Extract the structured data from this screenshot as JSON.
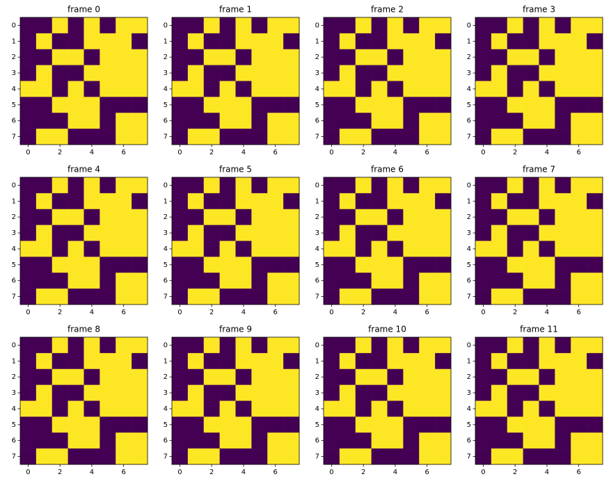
{
  "chart_data": [
    {
      "type": "heatmap",
      "title": "frame 0",
      "colors": [
        "#440154",
        "#fde725"
      ],
      "xlim": [
        -0.5,
        7.5
      ],
      "ylim": [
        7.5,
        -0.5
      ],
      "xticks": [
        0,
        2,
        4,
        6
      ],
      "yticks": [
        0,
        1,
        2,
        3,
        4,
        5,
        6,
        7
      ],
      "z": [
        [
          0,
          0,
          1,
          0,
          1,
          0,
          1,
          1
        ],
        [
          0,
          1,
          0,
          0,
          1,
          1,
          1,
          0
        ],
        [
          0,
          0,
          1,
          1,
          0,
          1,
          1,
          1
        ],
        [
          0,
          1,
          0,
          0,
          1,
          1,
          1,
          1
        ],
        [
          1,
          1,
          0,
          1,
          0,
          1,
          1,
          1
        ],
        [
          0,
          0,
          1,
          1,
          1,
          0,
          0,
          0
        ],
        [
          0,
          0,
          0,
          1,
          1,
          0,
          1,
          1
        ],
        [
          0,
          1,
          1,
          0,
          0,
          0,
          1,
          1
        ]
      ]
    },
    {
      "type": "heatmap",
      "title": "frame 1",
      "colors": [
        "#440154",
        "#fde725"
      ],
      "xlim": [
        -0.5,
        7.5
      ],
      "ylim": [
        7.5,
        -0.5
      ],
      "xticks": [
        0,
        2,
        4,
        6
      ],
      "yticks": [
        0,
        1,
        2,
        3,
        4,
        5,
        6,
        7
      ],
      "z": [
        [
          0,
          0,
          1,
          0,
          1,
          0,
          1,
          1
        ],
        [
          0,
          1,
          0,
          0,
          1,
          1,
          1,
          0
        ],
        [
          0,
          0,
          1,
          1,
          0,
          1,
          1,
          1
        ],
        [
          0,
          1,
          0,
          0,
          1,
          1,
          1,
          1
        ],
        [
          1,
          1,
          0,
          1,
          0,
          1,
          1,
          1
        ],
        [
          0,
          0,
          1,
          1,
          1,
          0,
          0,
          0
        ],
        [
          0,
          0,
          0,
          1,
          1,
          0,
          1,
          1
        ],
        [
          0,
          1,
          1,
          0,
          0,
          0,
          1,
          1
        ]
      ]
    },
    {
      "type": "heatmap",
      "title": "frame 2",
      "colors": [
        "#440154",
        "#fde725"
      ],
      "xlim": [
        -0.5,
        7.5
      ],
      "ylim": [
        7.5,
        -0.5
      ],
      "xticks": [
        0,
        2,
        4,
        6
      ],
      "yticks": [
        0,
        1,
        2,
        3,
        4,
        5,
        6,
        7
      ],
      "z": [
        [
          0,
          0,
          1,
          0,
          1,
          0,
          1,
          1
        ],
        [
          0,
          1,
          0,
          0,
          1,
          1,
          1,
          0
        ],
        [
          0,
          0,
          1,
          1,
          0,
          1,
          1,
          1
        ],
        [
          0,
          1,
          0,
          0,
          1,
          1,
          1,
          1
        ],
        [
          1,
          1,
          0,
          1,
          0,
          1,
          1,
          1
        ],
        [
          0,
          0,
          1,
          1,
          1,
          0,
          0,
          0
        ],
        [
          0,
          0,
          0,
          1,
          1,
          0,
          1,
          1
        ],
        [
          0,
          1,
          1,
          0,
          0,
          0,
          1,
          1
        ]
      ]
    },
    {
      "type": "heatmap",
      "title": "frame 3",
      "colors": [
        "#440154",
        "#fde725"
      ],
      "xlim": [
        -0.5,
        7.5
      ],
      "ylim": [
        7.5,
        -0.5
      ],
      "xticks": [
        0,
        2,
        4,
        6
      ],
      "yticks": [
        0,
        1,
        2,
        3,
        4,
        5,
        6,
        7
      ],
      "z": [
        [
          0,
          0,
          1,
          0,
          1,
          0,
          1,
          1
        ],
        [
          0,
          1,
          0,
          0,
          1,
          1,
          1,
          0
        ],
        [
          0,
          0,
          1,
          1,
          0,
          1,
          1,
          1
        ],
        [
          0,
          1,
          0,
          0,
          1,
          1,
          1,
          1
        ],
        [
          1,
          1,
          0,
          1,
          0,
          1,
          1,
          1
        ],
        [
          0,
          0,
          1,
          1,
          1,
          0,
          0,
          0
        ],
        [
          0,
          0,
          0,
          1,
          1,
          0,
          1,
          1
        ],
        [
          0,
          1,
          1,
          0,
          0,
          0,
          1,
          1
        ]
      ]
    },
    {
      "type": "heatmap",
      "title": "frame 4",
      "colors": [
        "#440154",
        "#fde725"
      ],
      "xlim": [
        -0.5,
        7.5
      ],
      "ylim": [
        7.5,
        -0.5
      ],
      "xticks": [
        0,
        2,
        4,
        6
      ],
      "yticks": [
        0,
        1,
        2,
        3,
        4,
        5,
        6,
        7
      ],
      "z": [
        [
          0,
          0,
          1,
          0,
          1,
          0,
          1,
          1
        ],
        [
          0,
          1,
          0,
          0,
          1,
          1,
          1,
          0
        ],
        [
          0,
          0,
          1,
          1,
          0,
          1,
          1,
          1
        ],
        [
          0,
          1,
          0,
          0,
          1,
          1,
          1,
          1
        ],
        [
          1,
          1,
          0,
          1,
          0,
          1,
          1,
          1
        ],
        [
          0,
          0,
          1,
          1,
          1,
          0,
          0,
          0
        ],
        [
          0,
          0,
          0,
          1,
          1,
          0,
          1,
          1
        ],
        [
          0,
          1,
          1,
          0,
          0,
          0,
          1,
          1
        ]
      ]
    },
    {
      "type": "heatmap",
      "title": "frame 5",
      "colors": [
        "#440154",
        "#fde725"
      ],
      "xlim": [
        -0.5,
        7.5
      ],
      "ylim": [
        7.5,
        -0.5
      ],
      "xticks": [
        0,
        2,
        4,
        6
      ],
      "yticks": [
        0,
        1,
        2,
        3,
        4,
        5,
        6,
        7
      ],
      "z": [
        [
          0,
          0,
          1,
          0,
          1,
          0,
          1,
          1
        ],
        [
          0,
          1,
          0,
          0,
          1,
          1,
          1,
          0
        ],
        [
          0,
          0,
          1,
          1,
          0,
          1,
          1,
          1
        ],
        [
          0,
          1,
          0,
          0,
          1,
          1,
          1,
          1
        ],
        [
          1,
          1,
          0,
          1,
          0,
          1,
          1,
          1
        ],
        [
          0,
          0,
          1,
          1,
          1,
          0,
          0,
          0
        ],
        [
          0,
          0,
          0,
          1,
          1,
          0,
          1,
          1
        ],
        [
          0,
          1,
          1,
          0,
          0,
          0,
          1,
          1
        ]
      ]
    },
    {
      "type": "heatmap",
      "title": "frame 6",
      "colors": [
        "#440154",
        "#fde725"
      ],
      "xlim": [
        -0.5,
        7.5
      ],
      "ylim": [
        7.5,
        -0.5
      ],
      "xticks": [
        0,
        2,
        4,
        6
      ],
      "yticks": [
        0,
        1,
        2,
        3,
        4,
        5,
        6,
        7
      ],
      "z": [
        [
          0,
          0,
          1,
          0,
          1,
          0,
          1,
          1
        ],
        [
          0,
          1,
          0,
          0,
          1,
          1,
          1,
          0
        ],
        [
          0,
          0,
          1,
          1,
          0,
          1,
          1,
          1
        ],
        [
          0,
          1,
          0,
          0,
          1,
          1,
          1,
          1
        ],
        [
          1,
          1,
          0,
          1,
          0,
          1,
          1,
          1
        ],
        [
          0,
          0,
          1,
          1,
          1,
          0,
          0,
          0
        ],
        [
          0,
          0,
          0,
          1,
          1,
          0,
          1,
          1
        ],
        [
          0,
          1,
          1,
          0,
          0,
          0,
          1,
          1
        ]
      ]
    },
    {
      "type": "heatmap",
      "title": "frame 7",
      "colors": [
        "#440154",
        "#fde725"
      ],
      "xlim": [
        -0.5,
        7.5
      ],
      "ylim": [
        7.5,
        -0.5
      ],
      "xticks": [
        0,
        2,
        4,
        6
      ],
      "yticks": [
        0,
        1,
        2,
        3,
        4,
        5,
        6,
        7
      ],
      "z": [
        [
          0,
          0,
          1,
          0,
          1,
          0,
          1,
          1
        ],
        [
          0,
          1,
          0,
          0,
          1,
          1,
          1,
          0
        ],
        [
          0,
          0,
          1,
          1,
          0,
          1,
          1,
          1
        ],
        [
          0,
          1,
          0,
          0,
          1,
          1,
          1,
          1
        ],
        [
          1,
          1,
          0,
          1,
          0,
          1,
          1,
          1
        ],
        [
          0,
          0,
          1,
          1,
          1,
          0,
          0,
          0
        ],
        [
          0,
          0,
          0,
          1,
          1,
          0,
          1,
          1
        ],
        [
          0,
          1,
          1,
          0,
          0,
          0,
          1,
          1
        ]
      ]
    },
    {
      "type": "heatmap",
      "title": "frame 8",
      "colors": [
        "#440154",
        "#fde725"
      ],
      "xlim": [
        -0.5,
        7.5
      ],
      "ylim": [
        7.5,
        -0.5
      ],
      "xticks": [
        0,
        2,
        4,
        6
      ],
      "yticks": [
        0,
        1,
        2,
        3,
        4,
        5,
        6,
        7
      ],
      "z": [
        [
          0,
          0,
          1,
          0,
          1,
          0,
          1,
          1
        ],
        [
          0,
          1,
          0,
          0,
          1,
          1,
          1,
          0
        ],
        [
          0,
          0,
          1,
          1,
          0,
          1,
          1,
          1
        ],
        [
          0,
          1,
          0,
          0,
          1,
          1,
          1,
          1
        ],
        [
          1,
          1,
          0,
          1,
          0,
          1,
          1,
          1
        ],
        [
          0,
          0,
          1,
          1,
          1,
          0,
          0,
          0
        ],
        [
          0,
          0,
          0,
          1,
          1,
          0,
          1,
          1
        ],
        [
          0,
          1,
          1,
          0,
          0,
          0,
          1,
          1
        ]
      ]
    },
    {
      "type": "heatmap",
      "title": "frame 9",
      "colors": [
        "#440154",
        "#fde725"
      ],
      "xlim": [
        -0.5,
        7.5
      ],
      "ylim": [
        7.5,
        -0.5
      ],
      "xticks": [
        0,
        2,
        4,
        6
      ],
      "yticks": [
        0,
        1,
        2,
        3,
        4,
        5,
        6,
        7
      ],
      "z": [
        [
          0,
          0,
          1,
          0,
          1,
          0,
          1,
          1
        ],
        [
          0,
          1,
          0,
          0,
          1,
          1,
          1,
          0
        ],
        [
          0,
          0,
          1,
          1,
          0,
          1,
          1,
          1
        ],
        [
          0,
          1,
          0,
          0,
          1,
          1,
          1,
          1
        ],
        [
          1,
          1,
          0,
          1,
          0,
          1,
          1,
          1
        ],
        [
          0,
          0,
          1,
          1,
          1,
          0,
          0,
          0
        ],
        [
          0,
          0,
          0,
          1,
          1,
          0,
          1,
          1
        ],
        [
          0,
          1,
          1,
          0,
          0,
          0,
          1,
          1
        ]
      ]
    },
    {
      "type": "heatmap",
      "title": "frame 10",
      "colors": [
        "#440154",
        "#fde725"
      ],
      "xlim": [
        -0.5,
        7.5
      ],
      "ylim": [
        7.5,
        -0.5
      ],
      "xticks": [
        0,
        2,
        4,
        6
      ],
      "yticks": [
        0,
        1,
        2,
        3,
        4,
        5,
        6,
        7
      ],
      "z": [
        [
          0,
          0,
          1,
          0,
          1,
          0,
          1,
          1
        ],
        [
          0,
          1,
          0,
          0,
          1,
          1,
          1,
          0
        ],
        [
          0,
          0,
          1,
          1,
          0,
          1,
          1,
          1
        ],
        [
          0,
          1,
          0,
          0,
          1,
          1,
          1,
          1
        ],
        [
          1,
          1,
          0,
          1,
          0,
          1,
          1,
          1
        ],
        [
          0,
          0,
          1,
          1,
          1,
          0,
          0,
          0
        ],
        [
          0,
          0,
          0,
          1,
          1,
          0,
          1,
          1
        ],
        [
          0,
          1,
          1,
          0,
          0,
          0,
          1,
          1
        ]
      ]
    },
    {
      "type": "heatmap",
      "title": "frame 11",
      "colors": [
        "#440154",
        "#fde725"
      ],
      "xlim": [
        -0.5,
        7.5
      ],
      "ylim": [
        7.5,
        -0.5
      ],
      "xticks": [
        0,
        2,
        4,
        6
      ],
      "yticks": [
        0,
        1,
        2,
        3,
        4,
        5,
        6,
        7
      ],
      "z": [
        [
          0,
          0,
          1,
          0,
          1,
          0,
          1,
          1
        ],
        [
          0,
          1,
          0,
          0,
          1,
          1,
          1,
          0
        ],
        [
          0,
          0,
          1,
          1,
          0,
          1,
          1,
          1
        ],
        [
          0,
          1,
          0,
          0,
          1,
          1,
          1,
          1
        ],
        [
          1,
          1,
          0,
          1,
          0,
          1,
          1,
          1
        ],
        [
          0,
          0,
          1,
          1,
          1,
          0,
          0,
          0
        ],
        [
          0,
          0,
          0,
          1,
          1,
          0,
          1,
          1
        ],
        [
          0,
          1,
          1,
          0,
          0,
          0,
          1,
          1
        ]
      ]
    }
  ]
}
